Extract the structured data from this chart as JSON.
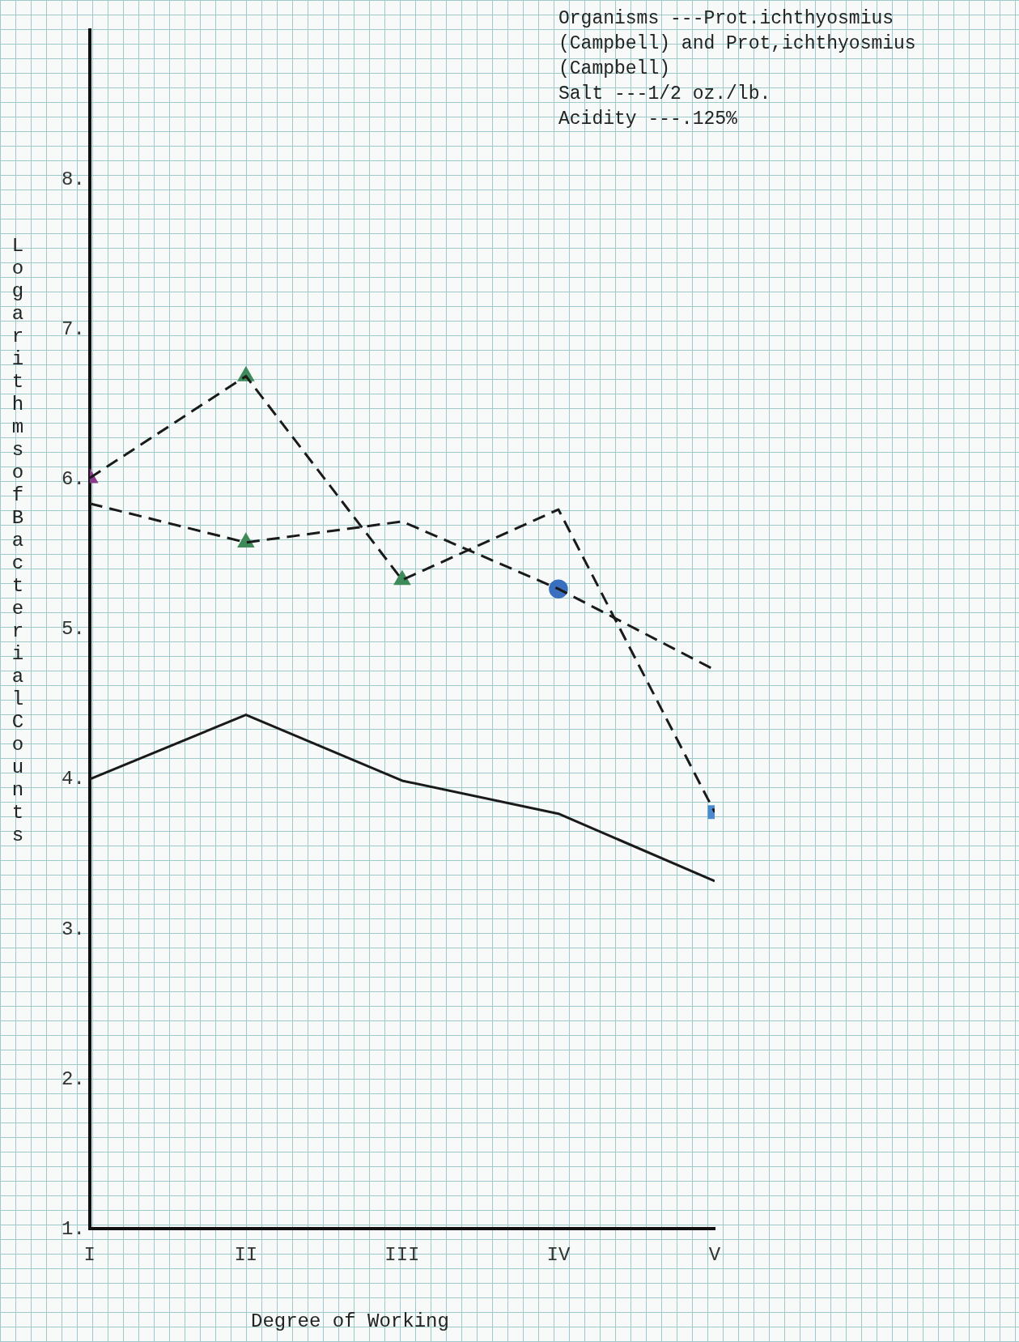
{
  "chart_data": {
    "type": "line",
    "xlabel": "Degree of Working",
    "ylabel": "Logarithms of Bacterial Counts",
    "annotations": [
      "Organisms ---Prot.ichthyosmius (Campbell) and Prot,ichthyosmius (Campbell)",
      "Salt ---1/2 oz./lb.",
      "Acidity ---.125%"
    ],
    "categories": [
      "I",
      "II",
      "III",
      "IV",
      "V"
    ],
    "ylim": [
      1,
      9
    ],
    "yticks": [
      {
        "value": 1,
        "label": "1."
      },
      {
        "value": 2,
        "label": "2."
      },
      {
        "value": 3,
        "label": "3."
      },
      {
        "value": 4,
        "label": "4."
      },
      {
        "value": 5,
        "label": "5."
      },
      {
        "value": 6,
        "label": "6."
      },
      {
        "value": 7,
        "label": "7."
      },
      {
        "value": 8,
        "label": "8."
      }
    ],
    "grid": false,
    "legend": false,
    "series": [
      {
        "color": "#1a1a1a",
        "line_style": "solid",
        "marker": "none",
        "values": [
          4.0,
          4.43,
          3.99,
          3.77,
          3.32
        ]
      },
      {
        "color": "#1a1a1a",
        "line_style": "dashed",
        "marker": "none",
        "values": [
          5.84,
          5.58,
          5.72,
          5.27,
          4.73
        ]
      },
      {
        "color": "#1a1a1a",
        "line_style": "dashed",
        "marker": "none",
        "values": [
          6.01,
          6.69,
          5.33,
          5.8,
          3.78
        ]
      },
      {
        "type": "scatter",
        "marker": "triangle",
        "x": [
          "I",
          "II",
          "II",
          "III"
        ],
        "values": [
          6.01,
          6.69,
          5.58,
          5.33
        ],
        "colors": [
          "#8a3a8c",
          "#3f8a5a",
          "#3f8a5a",
          "#3f8a5a"
        ]
      },
      {
        "type": "scatter",
        "marker": "circle",
        "x": [
          "IV"
        ],
        "values": [
          5.27
        ],
        "color": "#3a6fc0"
      },
      {
        "type": "scatter",
        "marker": "square",
        "x": [
          "V"
        ],
        "values": [
          3.78
        ],
        "color": "#4a8ad0"
      }
    ]
  }
}
